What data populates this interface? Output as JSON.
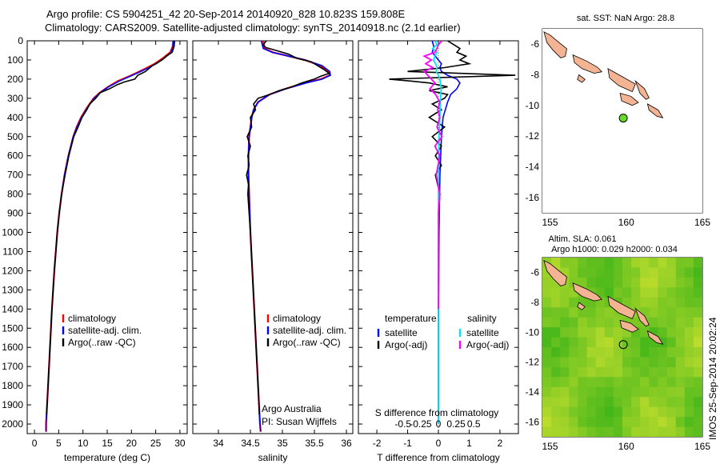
{
  "header": {
    "title_line1": "Argo profile: CS 5904251_42 20-Sep-2014 20140920_828 10.823S 159.808E",
    "title_line2": "Climatology: CARS2009. Satellite-adjusted climatology: synTS_20140918.nc (2.1d earlier)"
  },
  "depth_axis": {
    "ylim": [
      0,
      2050
    ],
    "ticks": [
      0,
      100,
      200,
      300,
      400,
      500,
      600,
      700,
      800,
      900,
      1000,
      1100,
      1200,
      1300,
      1400,
      1500,
      1600,
      1700,
      1800,
      1900,
      2000
    ]
  },
  "colors": {
    "climatology": "#ff0000",
    "satellite": "#0000ff",
    "argo": "#000000",
    "sat_salinity": "#00e5ee",
    "argo_salinity": "#ff00ff",
    "island_fill": "#f4b494",
    "float_marker": "#66dd22"
  },
  "chart_data": [
    {
      "type": "line",
      "xlabel": "temperature (deg C)",
      "ylabel": "",
      "xlim": [
        -1.5,
        31.5
      ],
      "xticks": [
        0,
        5,
        10,
        15,
        20,
        25,
        30
      ],
      "legend": [
        "climatology",
        "satellite-adj. clim.",
        "Argo(..raw -QC)"
      ],
      "legend_position": "lower-middle",
      "series": [
        {
          "name": "climatology",
          "depth": [
            0,
            30,
            60,
            90,
            120,
            150,
            180,
            210,
            240,
            270,
            300,
            350,
            400,
            450,
            500,
            600,
            700,
            800,
            900,
            1000,
            1200,
            1400,
            1600,
            1800,
            2000,
            2040
          ],
          "values": [
            28.6,
            28.5,
            28.0,
            26.5,
            24.8,
            22.5,
            20.0,
            17.2,
            15.2,
            13.5,
            12.2,
            10.8,
            9.6,
            8.7,
            8.0,
            7.0,
            6.2,
            5.6,
            5.1,
            4.7,
            4.1,
            3.6,
            3.2,
            2.8,
            2.4,
            2.4
          ]
        },
        {
          "name": "satellite-adj. clim.",
          "depth": [
            0,
            30,
            60,
            90,
            120,
            150,
            180,
            210,
            240,
            270,
            300,
            350,
            400,
            450,
            500,
            600,
            700,
            800,
            900,
            1000,
            1200,
            1400,
            1600,
            1800,
            2000,
            2040
          ],
          "values": [
            28.7,
            28.6,
            28.2,
            26.8,
            25.1,
            22.8,
            20.2,
            17.5,
            15.3,
            13.6,
            12.3,
            10.9,
            9.7,
            8.8,
            8.0,
            7.0,
            6.2,
            5.6,
            5.1,
            4.7,
            4.1,
            3.6,
            3.2,
            2.8,
            2.4,
            2.4
          ]
        },
        {
          "name": "Argo(..raw -QC)",
          "depth": [
            0,
            30,
            60,
            80,
            100,
            130,
            160,
            180,
            200,
            215,
            230,
            250,
            270,
            300,
            330,
            360,
            400,
            450,
            500,
            600,
            700,
            800,
            900,
            1000,
            1200,
            1400,
            1600,
            1800,
            1950
          ],
          "values": [
            28.9,
            28.8,
            28.4,
            27.2,
            26.3,
            24.3,
            22.9,
            21.3,
            20.7,
            18.5,
            17.0,
            15.5,
            13.6,
            12.6,
            11.4,
            10.8,
            9.8,
            9.0,
            8.1,
            7.1,
            6.3,
            5.6,
            5.1,
            4.7,
            4.1,
            3.6,
            3.2,
            2.8,
            2.5
          ]
        }
      ]
    },
    {
      "type": "line",
      "xlabel": "salinity",
      "ylabel": "",
      "xlim": [
        33.6,
        36.1
      ],
      "xticks": [
        34,
        34.5,
        35,
        35.5,
        36
      ],
      "legend": [
        "climatology",
        "satellite-adj. clim.",
        "Argo(..raw -QC)"
      ],
      "legend_position": "lower-right",
      "annotation": [
        "Argo Australia",
        "PI: Susan Wijffels"
      ],
      "series": [
        {
          "name": "climatology",
          "depth": [
            0,
            40,
            60,
            80,
            100,
            130,
            160,
            180,
            200,
            220,
            250,
            280,
            320,
            360,
            400,
            450,
            500,
            600,
            700,
            800,
            1000,
            1200,
            1400,
            1600,
            1800,
            2000,
            2040
          ],
          "values": [
            34.7,
            34.72,
            34.85,
            35.1,
            35.35,
            35.6,
            35.72,
            35.74,
            35.6,
            35.35,
            35.05,
            34.8,
            34.62,
            34.55,
            34.52,
            34.5,
            34.48,
            34.47,
            34.47,
            34.48,
            34.5,
            34.53,
            34.56,
            34.59,
            34.62,
            34.65,
            34.66
          ]
        },
        {
          "name": "satellite-adj. clim.",
          "depth": [
            0,
            40,
            60,
            80,
            100,
            130,
            160,
            180,
            200,
            220,
            250,
            280,
            320,
            360,
            400,
            450,
            500,
            600,
            700,
            800,
            1000,
            1200,
            1400,
            1600,
            1800,
            2000,
            2040
          ],
          "values": [
            34.67,
            34.7,
            34.84,
            35.1,
            35.36,
            35.62,
            35.74,
            35.75,
            35.62,
            35.37,
            35.06,
            34.8,
            34.62,
            34.55,
            34.52,
            34.5,
            34.48,
            34.47,
            34.47,
            34.48,
            34.5,
            34.53,
            34.56,
            34.59,
            34.62,
            34.65,
            34.66
          ]
        },
        {
          "name": "Argo(..raw -QC)",
          "depth": [
            0,
            20,
            35,
            50,
            70,
            90,
            110,
            130,
            150,
            170,
            185,
            200,
            220,
            240,
            260,
            280,
            300,
            330,
            360,
            400,
            450,
            500,
            550,
            600,
            650,
            700,
            750,
            800,
            900,
            1000,
            1200,
            1400,
            1600,
            1800,
            1950
          ],
          "values": [
            34.75,
            34.7,
            34.74,
            34.9,
            35.1,
            35.22,
            35.45,
            35.55,
            35.65,
            35.73,
            35.6,
            35.5,
            35.3,
            35.15,
            34.95,
            34.8,
            34.62,
            34.55,
            34.58,
            34.5,
            34.52,
            34.45,
            34.5,
            34.46,
            34.48,
            34.44,
            34.47,
            34.46,
            34.48,
            34.5,
            34.53,
            34.56,
            34.59,
            34.62,
            34.64
          ]
        }
      ]
    },
    {
      "type": "line",
      "xlabel": "T difference from climatology",
      "x2label": "S difference from climatology",
      "xlim": [
        -2.6,
        2.6
      ],
      "xticks": [
        -2,
        -1,
        0,
        1,
        2
      ],
      "x2ticks": [
        -0.5,
        -0.25,
        0,
        0.25,
        0.5
      ],
      "x2tick_labels": [
        "-0.5",
        "-0.25",
        "0",
        "0.25",
        "0.5"
      ],
      "legend_title_left": "temperature",
      "legend_title_right": "salinity",
      "legend": [
        "satellite",
        "Argo(-adj)",
        "satellite",
        "Argo(-adj)"
      ],
      "legend_position": "lower-middle",
      "series": [
        {
          "name": "satellite",
          "depth": [
            0,
            30,
            60,
            80,
            100,
            120,
            140,
            160,
            180,
            200,
            220,
            250,
            280,
            320,
            400,
            500,
            700,
            1000,
            1500,
            2000
          ],
          "values": [
            -0.2,
            -0.15,
            -0.2,
            -0.1,
            0.0,
            0.1,
            0.05,
            0.1,
            0.3,
            0.6,
            0.7,
            0.6,
            0.4,
            0.3,
            0.15,
            0.1,
            0.05,
            0.02,
            0.0,
            0.0
          ]
        },
        {
          "name": "Argo(-adj)",
          "depth": [
            0,
            20,
            40,
            60,
            80,
            100,
            120,
            140,
            160,
            180,
            200,
            210,
            220,
            240,
            260,
            280,
            300,
            330,
            360,
            400,
            450,
            500,
            550,
            600,
            650,
            700,
            800,
            900,
            1000,
            1200,
            1500,
            1800,
            1950
          ],
          "values": [
            0.3,
            0.5,
            0.7,
            0.6,
            0.9,
            0.7,
            1.0,
            0.2,
            -1.0,
            2.5,
            -1.6,
            -0.9,
            -0.3,
            0.3,
            -0.3,
            0.3,
            0.2,
            -0.2,
            0.1,
            -0.3,
            0.2,
            -0.2,
            0.1,
            -0.1,
            0.1,
            -0.1,
            0.05,
            0.0,
            0.0,
            0.0,
            0.0,
            0.0,
            0.0
          ]
        }
      ],
      "salinity_series": [
        {
          "name": "satellite",
          "depth": [
            0,
            20,
            40,
            60,
            80,
            100,
            120,
            140,
            160,
            180,
            200,
            250,
            300,
            400,
            500,
            700,
            1000,
            1500,
            2000
          ],
          "values": [
            -0.05,
            -0.02,
            -0.08,
            -0.02,
            -0.05,
            -0.07,
            -0.04,
            -0.02,
            -0.03,
            0.0,
            0.02,
            0.04,
            0.03,
            0.02,
            0.01,
            0.0,
            0.0,
            0.0,
            0.0
          ]
        },
        {
          "name": "Argo(-adj)",
          "depth": [
            0,
            20,
            40,
            60,
            80,
            100,
            120,
            140,
            160,
            180,
            200,
            220,
            250,
            280,
            320,
            360,
            400,
            450,
            500,
            550,
            600,
            700,
            800,
            900,
            1000,
            1200,
            1400
          ],
          "values": [
            0.05,
            0.0,
            -0.02,
            -0.05,
            -0.2,
            -0.1,
            -0.18,
            -0.08,
            -0.2,
            -0.15,
            -0.1,
            -0.05,
            -0.12,
            -0.04,
            0.02,
            -0.01,
            0.02,
            -0.02,
            0.05,
            -0.05,
            0.02,
            -0.03,
            0.02,
            0.0,
            0.0,
            0.0,
            0.0
          ]
        }
      ]
    },
    {
      "type": "scatter",
      "title": "sat. SST: NaN Argo: 28.8",
      "xlim": [
        154.5,
        165
      ],
      "ylim": [
        -17,
        -5
      ],
      "xticks": [
        155,
        160,
        165
      ],
      "yticks": [
        -6,
        -8,
        -10,
        -12,
        -14,
        -16
      ],
      "points": [
        {
          "x": 159.808,
          "y": -10.823
        }
      ]
    },
    {
      "type": "heatmap",
      "title_line1": "Altim. SLA: 0.061",
      "title_line2": "Argo h1000: 0.029 h2000: 0.034",
      "xlim": [
        154.5,
        165
      ],
      "ylim": [
        -17,
        -5
      ],
      "xticks": [
        155,
        160,
        165
      ],
      "yticks": [
        -6,
        -8,
        -10,
        -12,
        -14,
        -16
      ],
      "points": [
        {
          "x": 159.808,
          "y": -10.823
        }
      ]
    }
  ],
  "side_text": "IMOS 25-Sep-2014 20:02:24"
}
